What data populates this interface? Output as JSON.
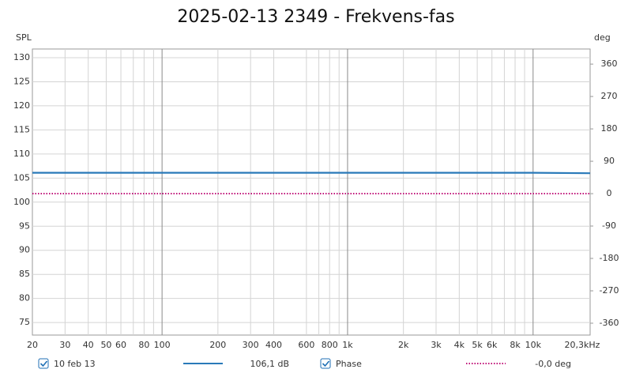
{
  "chart_data": {
    "type": "line",
    "title": "2025-02-13 2349 - Frekvens-fas",
    "y_label": "SPL",
    "y2_label": "deg",
    "x": [
      20,
      1000,
      10000,
      20300
    ],
    "xlim": [
      20,
      20300
    ],
    "log_x": true,
    "xticks": [
      20,
      30,
      40,
      50,
      60,
      80,
      100,
      200,
      300,
      400,
      600,
      800,
      {
        "value": 1000,
        "label": "1k"
      },
      {
        "value": 2000,
        "label": "2k"
      },
      {
        "value": 3000,
        "label": "3k"
      },
      {
        "value": 4000,
        "label": "4k"
      },
      {
        "value": 5000,
        "label": "5k"
      },
      {
        "value": 6000,
        "label": "6k"
      },
      {
        "value": 8000,
        "label": "8k"
      },
      {
        "value": 10000,
        "label": "10k"
      },
      {
        "value": 20300,
        "label": "20,3kHz"
      }
    ],
    "xminor": [
      70,
      90,
      700,
      900,
      7000,
      9000
    ],
    "ylim": [
      72.4,
      131.8
    ],
    "yticks": [
      75,
      80,
      85,
      90,
      95,
      100,
      105,
      110,
      115,
      120,
      125,
      130
    ],
    "y2lim": [
      -393,
      402
    ],
    "y2ticks": [
      -360,
      -270,
      -180,
      -90,
      0,
      90,
      180,
      270,
      360
    ],
    "grid": true,
    "series": [
      {
        "name": "10 feb 13",
        "color": "#2a7ab9",
        "values": [
          106.1,
          106.1,
          106.1,
          106.0
        ],
        "readout": "106,1 dB",
        "style": "solid"
      },
      {
        "name": "Phase",
        "color": "#c0157a",
        "values": [
          0,
          0,
          0,
          0
        ],
        "readout": "-0,0 deg",
        "style": "dotted",
        "axis": "y2"
      }
    ]
  }
}
